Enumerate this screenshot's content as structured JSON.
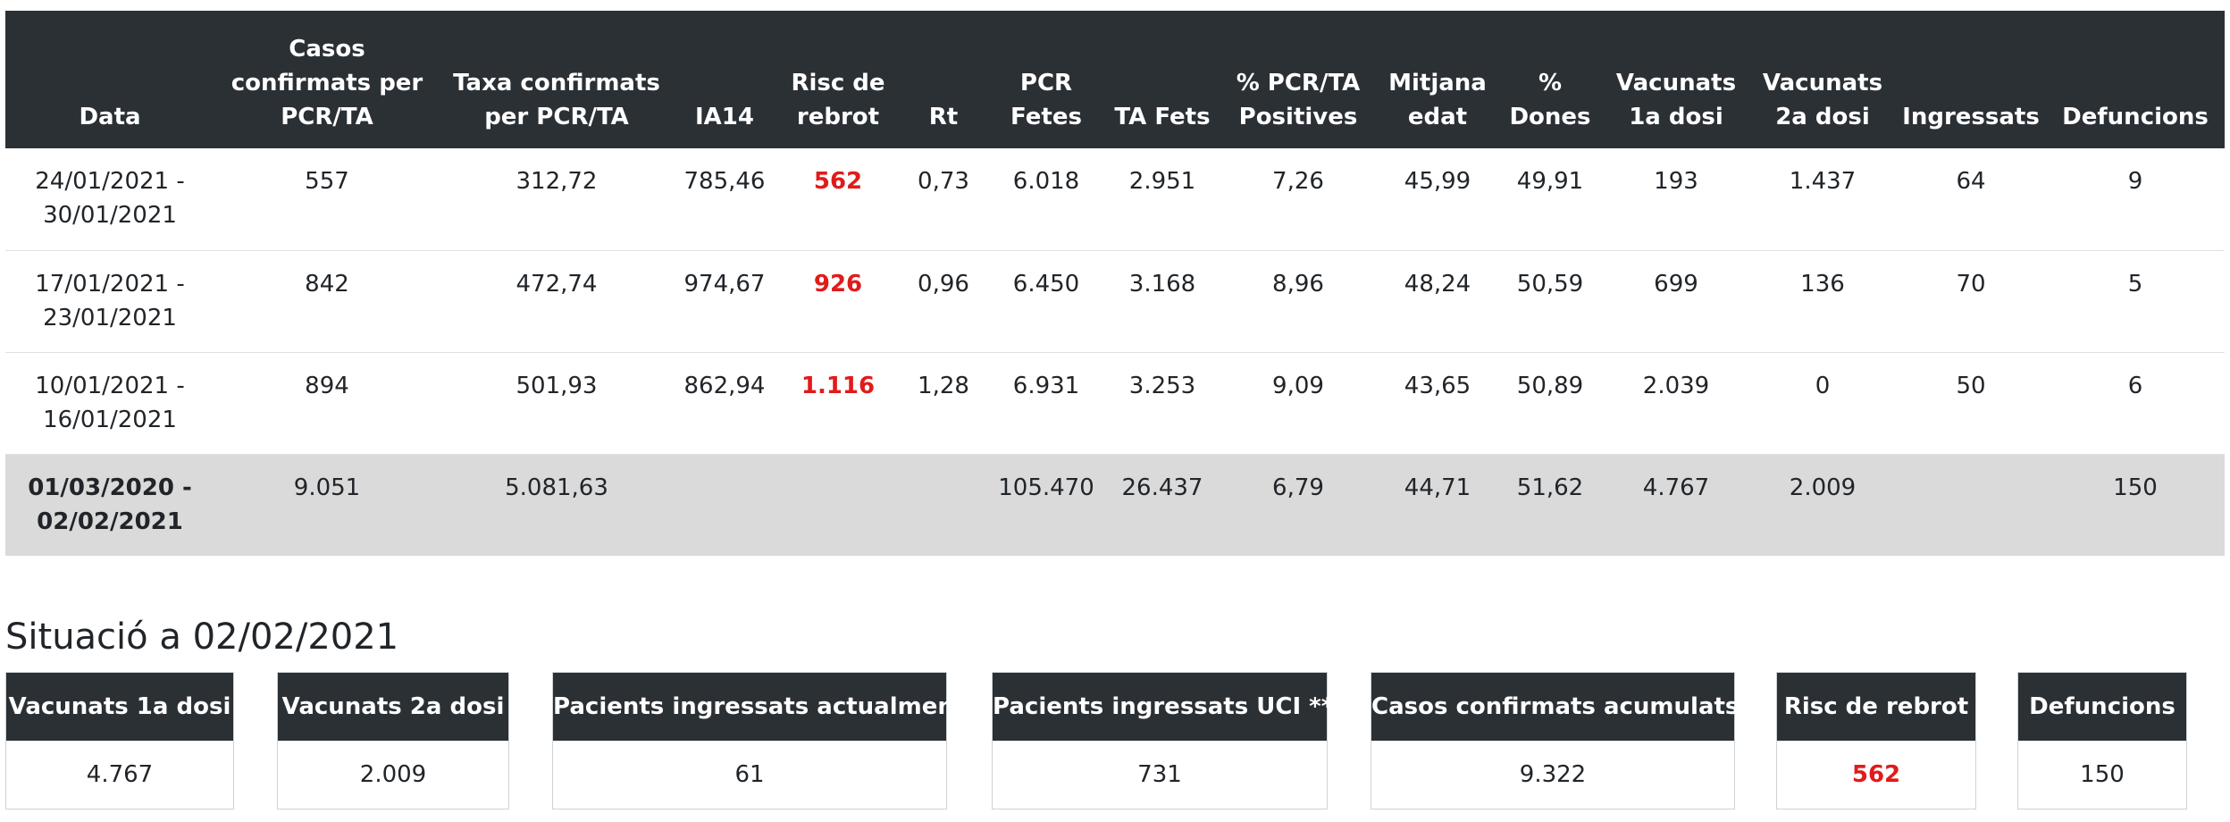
{
  "weekly_table": {
    "headers": [
      "Data",
      "Casos confirmats per PCR/TA",
      "Taxa confirmats per PCR/TA",
      "IA14",
      "Risc de rebrot",
      "Rt",
      "PCR Fetes",
      "TA Fets",
      "% PCR/TA Positives",
      "Mitjana edat",
      "% Dones",
      "Vacunats 1a dosi",
      "Vacunats 2a dosi",
      "Ingressats",
      "Defuncions"
    ],
    "rows": [
      [
        "24/01/2021 - 30/01/2021",
        "557",
        "312,72",
        "785,46",
        "562",
        "0,73",
        "6.018",
        "2.951",
        "7,26",
        "45,99",
        "49,91",
        "193",
        "1.437",
        "64",
        "9"
      ],
      [
        "17/01/2021 - 23/01/2021",
        "842",
        "472,74",
        "974,67",
        "926",
        "0,96",
        "6.450",
        "3.168",
        "8,96",
        "48,24",
        "50,59",
        "699",
        "136",
        "70",
        "5"
      ],
      [
        "10/01/2021 - 16/01/2021",
        "894",
        "501,93",
        "862,94",
        "1.116",
        "1,28",
        "6.931",
        "3.253",
        "9,09",
        "43,65",
        "50,89",
        "2.039",
        "0",
        "50",
        "6"
      ]
    ],
    "total": [
      "01/03/2020 - 02/02/2021",
      "9.051",
      "5.081,63",
      "",
      "",
      "",
      "105.470",
      "26.437",
      "6,79",
      "44,71",
      "51,62",
      "4.767",
      "2.009",
      "",
      "150"
    ]
  },
  "situation": {
    "title": "Situació a 02/02/2021",
    "cards": [
      {
        "label": "Vacunats 1a dosi",
        "value": "4.767"
      },
      {
        "label": "Vacunats 2a dosi",
        "value": "2.009"
      },
      {
        "label": "Pacients ingressats actualment",
        "value": "61"
      },
      {
        "label": "Pacients ingressats UCI **",
        "value": "731"
      },
      {
        "label": "Casos confirmats acumulats",
        "value": "9.322"
      },
      {
        "label": "Risc de rebrot",
        "value": "562"
      },
      {
        "label": "Defuncions",
        "value": "150"
      }
    ]
  },
  "colors": {
    "header_bg": "#2b3035",
    "risk_red": "#e01b1b",
    "total_row_bg": "#dadada"
  }
}
